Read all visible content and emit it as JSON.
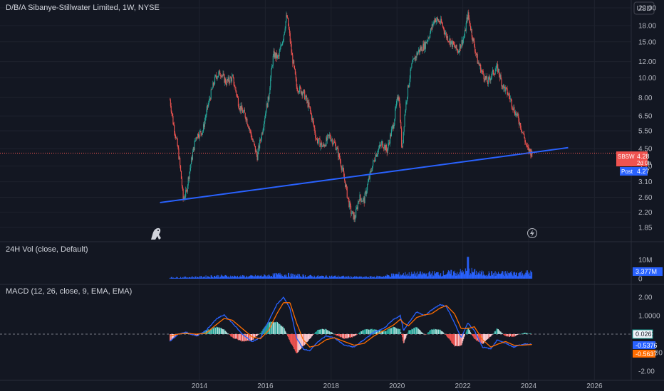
{
  "header": {
    "title": "D/B/A Sibanye-Stillwater Limited, 1W, NYSE",
    "currency": "USD"
  },
  "price_pane": {
    "ticks": [
      "22.00",
      "18.00",
      "15.00",
      "12.00",
      "10.00",
      "8.00",
      "6.50",
      "5.50",
      "4.50",
      "3.70",
      "3.10",
      "2.60",
      "2.20",
      "1.85"
    ],
    "ticker_label": {
      "symbol": "SBSW",
      "value": "4.28",
      "countdown": "2d 0h"
    },
    "post_label": {
      "text": "Post",
      "value": "4.27"
    }
  },
  "volume_pane": {
    "label": "24H Vol (close, Default)",
    "ticks": [
      "10M",
      "0"
    ],
    "last_value": "3.377M"
  },
  "macd_pane": {
    "label": "MACD (12, 26, close, 9, EMA, EMA)",
    "ticks": [
      "2.00",
      "1.0000",
      "-1.0000",
      "-2.00"
    ],
    "hist_value": "0.0261",
    "macd_value": "-0.5376",
    "signal_value": "-0.5637"
  },
  "x_axis": {
    "ticks": [
      "2014",
      "2016",
      "2018",
      "2020",
      "2022",
      "2024",
      "2026"
    ]
  },
  "colors": {
    "background": "#131722",
    "up": "#26a69a",
    "down": "#ef5350",
    "trendline": "#2962ff",
    "macd": "#2962ff",
    "signal": "#ff6d00",
    "volume": "#2962ff"
  },
  "chart_data": {
    "type": "candlestick",
    "interval": "1W",
    "y_scale": "log",
    "ylim": [
      1.7,
      24
    ],
    "x_range": [
      2012.6,
      2026.8
    ],
    "price_path": [
      {
        "x": 2013.1,
        "y": 7.8
      },
      {
        "x": 2013.2,
        "y": 6.0
      },
      {
        "x": 2013.35,
        "y": 4.4
      },
      {
        "x": 2013.5,
        "y": 2.55
      },
      {
        "x": 2013.6,
        "y": 2.75
      },
      {
        "x": 2013.75,
        "y": 3.9
      },
      {
        "x": 2013.9,
        "y": 5.2
      },
      {
        "x": 2014.1,
        "y": 5.5
      },
      {
        "x": 2014.3,
        "y": 7.8
      },
      {
        "x": 2014.5,
        "y": 10.2
      },
      {
        "x": 2014.65,
        "y": 10.6
      },
      {
        "x": 2014.8,
        "y": 9.5
      },
      {
        "x": 2015.0,
        "y": 10.0
      },
      {
        "x": 2015.2,
        "y": 7.3
      },
      {
        "x": 2015.4,
        "y": 6.5
      },
      {
        "x": 2015.6,
        "y": 5.0
      },
      {
        "x": 2015.75,
        "y": 4.1
      },
      {
        "x": 2015.9,
        "y": 5.4
      },
      {
        "x": 2016.1,
        "y": 8.0
      },
      {
        "x": 2016.25,
        "y": 13.0
      },
      {
        "x": 2016.4,
        "y": 12.5
      },
      {
        "x": 2016.55,
        "y": 16.0
      },
      {
        "x": 2016.65,
        "y": 20.2
      },
      {
        "x": 2016.8,
        "y": 13.0
      },
      {
        "x": 2016.95,
        "y": 9.0
      },
      {
        "x": 2017.15,
        "y": 8.5
      },
      {
        "x": 2017.35,
        "y": 7.0
      },
      {
        "x": 2017.55,
        "y": 5.0
      },
      {
        "x": 2017.75,
        "y": 4.6
      },
      {
        "x": 2017.95,
        "y": 5.2
      },
      {
        "x": 2018.15,
        "y": 4.6
      },
      {
        "x": 2018.35,
        "y": 3.5
      },
      {
        "x": 2018.5,
        "y": 2.6
      },
      {
        "x": 2018.6,
        "y": 2.2
      },
      {
        "x": 2018.72,
        "y": 2.05
      },
      {
        "x": 2018.85,
        "y": 2.6
      },
      {
        "x": 2019.0,
        "y": 2.5
      },
      {
        "x": 2019.15,
        "y": 3.2
      },
      {
        "x": 2019.35,
        "y": 4.2
      },
      {
        "x": 2019.55,
        "y": 4.8
      },
      {
        "x": 2019.7,
        "y": 4.4
      },
      {
        "x": 2019.9,
        "y": 6.0
      },
      {
        "x": 2020.05,
        "y": 8.5
      },
      {
        "x": 2020.15,
        "y": 4.2
      },
      {
        "x": 2020.25,
        "y": 7.0
      },
      {
        "x": 2020.45,
        "y": 11.5
      },
      {
        "x": 2020.65,
        "y": 13.5
      },
      {
        "x": 2020.85,
        "y": 14.5
      },
      {
        "x": 2021.0,
        "y": 16.5
      },
      {
        "x": 2021.15,
        "y": 19.5
      },
      {
        "x": 2021.35,
        "y": 18.5
      },
      {
        "x": 2021.5,
        "y": 16.0
      },
      {
        "x": 2021.7,
        "y": 14.5
      },
      {
        "x": 2021.85,
        "y": 13.5
      },
      {
        "x": 2022.05,
        "y": 16.0
      },
      {
        "x": 2022.15,
        "y": 20.5
      },
      {
        "x": 2022.3,
        "y": 15.5
      },
      {
        "x": 2022.45,
        "y": 12.0
      },
      {
        "x": 2022.6,
        "y": 10.5
      },
      {
        "x": 2022.75,
        "y": 9.5
      },
      {
        "x": 2022.9,
        "y": 10.5
      },
      {
        "x": 2023.05,
        "y": 11.2
      },
      {
        "x": 2023.2,
        "y": 9.2
      },
      {
        "x": 2023.4,
        "y": 8.2
      },
      {
        "x": 2023.55,
        "y": 7.0
      },
      {
        "x": 2023.7,
        "y": 6.2
      },
      {
        "x": 2023.85,
        "y": 5.2
      },
      {
        "x": 2023.95,
        "y": 4.5
      },
      {
        "x": 2024.1,
        "y": 4.28
      }
    ],
    "trendline": [
      {
        "x": 2012.8,
        "y": 2.45
      },
      {
        "x": 2025.2,
        "y": 4.55
      }
    ],
    "macd": [
      {
        "x": 2013.1,
        "y": -0.4
      },
      {
        "x": 2013.35,
        "y": 0.0
      },
      {
        "x": 2013.6,
        "y": 0.1
      },
      {
        "x": 2013.9,
        "y": -0.1
      },
      {
        "x": 2014.2,
        "y": 0.2
      },
      {
        "x": 2014.5,
        "y": 0.8
      },
      {
        "x": 2014.75,
        "y": 1.05
      },
      {
        "x": 2015.0,
        "y": 0.6
      },
      {
        "x": 2015.3,
        "y": 0.0
      },
      {
        "x": 2015.6,
        "y": -0.4
      },
      {
        "x": 2015.85,
        "y": -0.2
      },
      {
        "x": 2016.1,
        "y": 0.7
      },
      {
        "x": 2016.35,
        "y": 1.6
      },
      {
        "x": 2016.55,
        "y": 2.0
      },
      {
        "x": 2016.75,
        "y": 1.4
      },
      {
        "x": 2016.95,
        "y": -0.2
      },
      {
        "x": 2017.15,
        "y": -0.8
      },
      {
        "x": 2017.35,
        "y": -0.9
      },
      {
        "x": 2017.6,
        "y": -0.4
      },
      {
        "x": 2017.85,
        "y": -0.1
      },
      {
        "x": 2018.1,
        "y": -0.2
      },
      {
        "x": 2018.4,
        "y": -0.6
      },
      {
        "x": 2018.7,
        "y": -0.7
      },
      {
        "x": 2019.0,
        "y": -0.3
      },
      {
        "x": 2019.3,
        "y": 0.1
      },
      {
        "x": 2019.6,
        "y": 0.3
      },
      {
        "x": 2019.9,
        "y": 0.8
      },
      {
        "x": 2020.1,
        "y": 1.0
      },
      {
        "x": 2020.2,
        "y": 0.2
      },
      {
        "x": 2020.35,
        "y": 0.6
      },
      {
        "x": 2020.6,
        "y": 1.2
      },
      {
        "x": 2020.85,
        "y": 1.0
      },
      {
        "x": 2021.05,
        "y": 1.3
      },
      {
        "x": 2021.3,
        "y": 1.6
      },
      {
        "x": 2021.5,
        "y": 1.5
      },
      {
        "x": 2021.75,
        "y": 0.6
      },
      {
        "x": 2021.95,
        "y": -0.2
      },
      {
        "x": 2022.15,
        "y": 0.6
      },
      {
        "x": 2022.35,
        "y": 0.2
      },
      {
        "x": 2022.6,
        "y": -0.7
      },
      {
        "x": 2022.85,
        "y": -0.8
      },
      {
        "x": 2023.05,
        "y": -0.3
      },
      {
        "x": 2023.3,
        "y": -0.5
      },
      {
        "x": 2023.55,
        "y": -0.7
      },
      {
        "x": 2023.8,
        "y": -0.55
      },
      {
        "x": 2024.1,
        "y": -0.54
      }
    ],
    "signal": [
      {
        "x": 2013.1,
        "y": -0.1
      },
      {
        "x": 2013.35,
        "y": 0.0
      },
      {
        "x": 2013.6,
        "y": 0.05
      },
      {
        "x": 2013.9,
        "y": 0.0
      },
      {
        "x": 2014.2,
        "y": 0.05
      },
      {
        "x": 2014.5,
        "y": 0.5
      },
      {
        "x": 2014.75,
        "y": 0.85
      },
      {
        "x": 2015.0,
        "y": 0.75
      },
      {
        "x": 2015.3,
        "y": 0.3
      },
      {
        "x": 2015.6,
        "y": -0.15
      },
      {
        "x": 2015.85,
        "y": -0.25
      },
      {
        "x": 2016.1,
        "y": 0.2
      },
      {
        "x": 2016.35,
        "y": 1.1
      },
      {
        "x": 2016.55,
        "y": 1.7
      },
      {
        "x": 2016.75,
        "y": 1.7
      },
      {
        "x": 2016.95,
        "y": 0.6
      },
      {
        "x": 2017.15,
        "y": -0.3
      },
      {
        "x": 2017.35,
        "y": -0.7
      },
      {
        "x": 2017.6,
        "y": -0.6
      },
      {
        "x": 2017.85,
        "y": -0.3
      },
      {
        "x": 2018.1,
        "y": -0.2
      },
      {
        "x": 2018.4,
        "y": -0.4
      },
      {
        "x": 2018.7,
        "y": -0.6
      },
      {
        "x": 2019.0,
        "y": -0.5
      },
      {
        "x": 2019.3,
        "y": -0.1
      },
      {
        "x": 2019.6,
        "y": 0.2
      },
      {
        "x": 2019.9,
        "y": 0.5
      },
      {
        "x": 2020.1,
        "y": 0.8
      },
      {
        "x": 2020.2,
        "y": 0.6
      },
      {
        "x": 2020.35,
        "y": 0.45
      },
      {
        "x": 2020.6,
        "y": 0.9
      },
      {
        "x": 2020.85,
        "y": 1.05
      },
      {
        "x": 2021.05,
        "y": 1.1
      },
      {
        "x": 2021.3,
        "y": 1.4
      },
      {
        "x": 2021.5,
        "y": 1.55
      },
      {
        "x": 2021.75,
        "y": 1.1
      },
      {
        "x": 2021.95,
        "y": 0.3
      },
      {
        "x": 2022.15,
        "y": 0.3
      },
      {
        "x": 2022.35,
        "y": 0.4
      },
      {
        "x": 2022.6,
        "y": -0.3
      },
      {
        "x": 2022.85,
        "y": -0.7
      },
      {
        "x": 2023.05,
        "y": -0.55
      },
      {
        "x": 2023.3,
        "y": -0.4
      },
      {
        "x": 2023.55,
        "y": -0.6
      },
      {
        "x": 2023.8,
        "y": -0.6
      },
      {
        "x": 2024.1,
        "y": -0.56
      }
    ],
    "volume_profile": [
      {
        "x": 2013.1,
        "v": 0.6
      },
      {
        "x": 2013.5,
        "v": 0.7
      },
      {
        "x": 2014.0,
        "v": 0.9
      },
      {
        "x": 2014.5,
        "v": 1.4
      },
      {
        "x": 2015.0,
        "v": 1.2
      },
      {
        "x": 2015.5,
        "v": 1.2
      },
      {
        "x": 2016.0,
        "v": 1.5
      },
      {
        "x": 2016.5,
        "v": 2.2
      },
      {
        "x": 2017.0,
        "v": 1.6
      },
      {
        "x": 2017.5,
        "v": 1.2
      },
      {
        "x": 2018.0,
        "v": 1.2
      },
      {
        "x": 2018.5,
        "v": 1.0
      },
      {
        "x": 2019.0,
        "v": 0.8
      },
      {
        "x": 2019.5,
        "v": 1.1
      },
      {
        "x": 2020.0,
        "v": 2.2
      },
      {
        "x": 2020.5,
        "v": 2.4
      },
      {
        "x": 2021.0,
        "v": 2.6
      },
      {
        "x": 2021.5,
        "v": 2.8
      },
      {
        "x": 2022.0,
        "v": 3.4
      },
      {
        "x": 2022.2,
        "v": 4.0
      },
      {
        "x": 2022.5,
        "v": 2.8
      },
      {
        "x": 2023.0,
        "v": 2.6
      },
      {
        "x": 2023.5,
        "v": 2.8
      },
      {
        "x": 2024.1,
        "v": 3.0
      }
    ],
    "volume_ylim": [
      0,
      12
    ]
  }
}
